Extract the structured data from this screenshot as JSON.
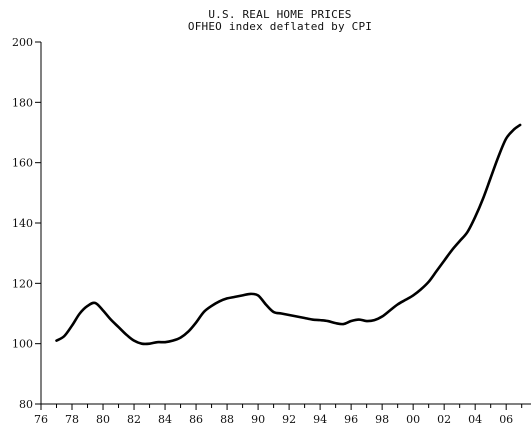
{
  "chart_data": {
    "type": "line",
    "title": "U.S. REAL HOME PRICES",
    "subtitle": "OFHEO index deflated by CPI",
    "xlabel": "",
    "ylabel": "",
    "xlim": [
      1976,
      2007.6
    ],
    "ylim": [
      80,
      200
    ],
    "x_ticks": [
      1976,
      1978,
      1980,
      1982,
      1984,
      1986,
      1988,
      1990,
      1992,
      1994,
      1996,
      1998,
      2000,
      2002,
      2004,
      2006
    ],
    "x_tick_labels": [
      "76",
      "78",
      "80",
      "82",
      "84",
      "86",
      "88",
      "90",
      "92",
      "94",
      "96",
      "98",
      "00",
      "02",
      "04",
      "06"
    ],
    "y_ticks": [
      80,
      100,
      120,
      140,
      160,
      180,
      200
    ],
    "y_tick_labels": [
      "80",
      "100",
      "120",
      "140",
      "160",
      "180",
      "200"
    ],
    "grid": false,
    "legend": "none",
    "line_color": "#000000",
    "series": [
      {
        "x": [
          1977.0,
          1977.5,
          1978.0,
          1978.5,
          1979.0,
          1979.5,
          1980.0,
          1980.5,
          1981.0,
          1981.5,
          1982.0,
          1982.5,
          1983.0,
          1983.5,
          1984.0,
          1984.5,
          1985.0,
          1985.5,
          1986.0,
          1986.5,
          1987.0,
          1987.5,
          1988.0,
          1988.5,
          1989.0,
          1989.5,
          1990.0,
          1990.5,
          1991.0,
          1991.5,
          1992.0,
          1992.5,
          1993.0,
          1993.5,
          1994.0,
          1994.5,
          1995.0,
          1995.5,
          1996.0,
          1996.5,
          1997.0,
          1997.5,
          1998.0,
          1998.5,
          1999.0,
          1999.5,
          2000.0,
          2000.5,
          2001.0,
          2001.5,
          2002.0,
          2002.5,
          2003.0,
          2003.5,
          2004.0,
          2004.5,
          2005.0,
          2005.5,
          2006.0,
          2006.5,
          2006.9
        ],
        "y": [
          101.0,
          102.5,
          106.0,
          110.0,
          112.5,
          113.5,
          111.0,
          108.0,
          105.5,
          103.0,
          101.0,
          100.0,
          100.0,
          100.5,
          100.5,
          101.0,
          102.0,
          104.0,
          107.0,
          110.5,
          112.5,
          114.0,
          115.0,
          115.5,
          116.0,
          116.5,
          116.0,
          113.0,
          110.5,
          110.0,
          109.5,
          109.0,
          108.5,
          108.0,
          107.8,
          107.5,
          106.8,
          106.5,
          107.5,
          108.0,
          107.5,
          107.8,
          109.0,
          111.0,
          113.0,
          114.5,
          116.0,
          118.0,
          120.5,
          124.0,
          127.5,
          131.0,
          134.0,
          137.0,
          142.0,
          148.0,
          155.0,
          162.0,
          168.0,
          171.0,
          172.5
        ]
      }
    ]
  }
}
